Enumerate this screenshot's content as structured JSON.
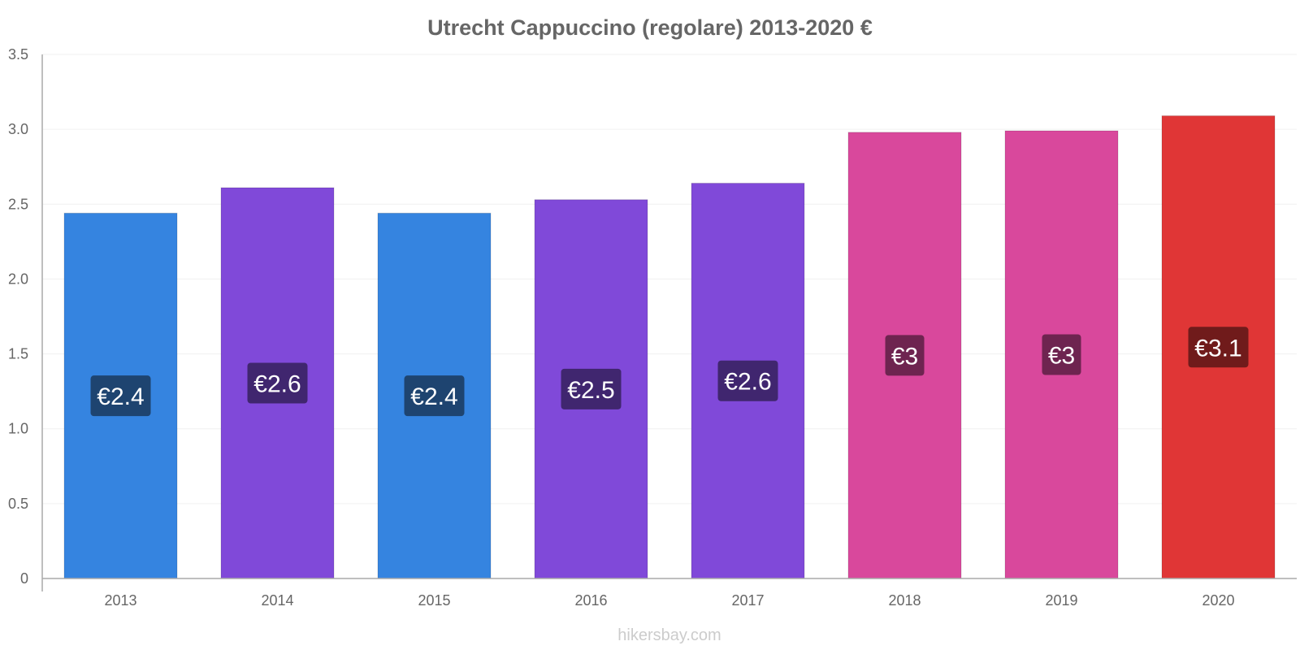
{
  "chart_data": {
    "type": "bar",
    "title": "Utrecht Cappuccino (regolare) 2013-2020 €",
    "categories": [
      "2013",
      "2014",
      "2015",
      "2016",
      "2017",
      "2018",
      "2019",
      "2020"
    ],
    "values": [
      2.44,
      2.61,
      2.44,
      2.53,
      2.64,
      2.98,
      2.99,
      3.09
    ],
    "value_labels": [
      "€2.4",
      "€2.6",
      "€2.4",
      "€2.5",
      "€2.6",
      "€3",
      "€3",
      "€3.1"
    ],
    "bar_colors": [
      "#3584e0",
      "#8049d9",
      "#3584e0",
      "#8049d9",
      "#8049d9",
      "#d9489c",
      "#d9489c",
      "#e03636"
    ],
    "label_bg_colors": [
      "#1e4470",
      "#40266f",
      "#1e4470",
      "#40266f",
      "#40266f",
      "#6e2450",
      "#6e2450",
      "#701b1b"
    ],
    "ylim": [
      0,
      3.5
    ],
    "yticks": [
      0,
      0.5,
      1.0,
      1.5,
      2.0,
      2.5,
      3.0,
      3.5
    ],
    "ytick_labels": [
      "0",
      "0.5",
      "1.0",
      "1.5",
      "2.0",
      "2.5",
      "3.0",
      "3.5"
    ],
    "xlabel": "",
    "ylabel": "",
    "grid": true,
    "legend": "none",
    "watermark": "hikersbay.com"
  }
}
